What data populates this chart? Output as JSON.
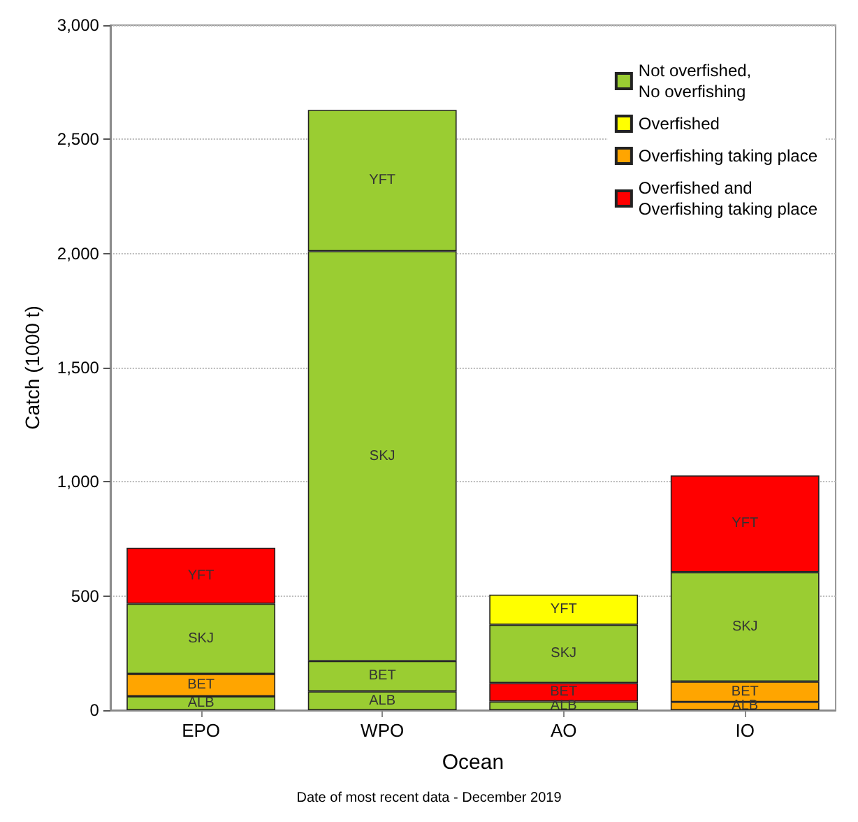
{
  "chart_data": {
    "type": "bar",
    "stacked": true,
    "xlabel": "Ocean",
    "ylabel": "Catch (1000 t)",
    "annotations": [
      "Date of most recent data - December 2019"
    ],
    "categories": [
      "EPO",
      "WPO",
      "AO",
      "IO"
    ],
    "series": [
      {
        "name": "ALB",
        "values": [
          61,
          82,
          38,
          36
        ],
        "colors": [
          "#9acd32",
          "#9acd32",
          "#9acd32",
          "#ffa500"
        ]
      },
      {
        "name": "BET",
        "values": [
          98,
          133,
          81,
          89
        ],
        "colors": [
          "#ffa500",
          "#9acd32",
          "#ff0000",
          "#ffa500"
        ]
      },
      {
        "name": "SKJ",
        "values": [
          307,
          1795,
          255,
          479
        ],
        "colors": [
          "#9acd32",
          "#9acd32",
          "#9acd32",
          "#9acd32"
        ]
      },
      {
        "name": "YFT",
        "values": [
          245,
          619,
          132,
          424
        ],
        "colors": [
          "#ff0000",
          "#9acd32",
          "#ffff00",
          "#ff0000"
        ]
      },
      {
        "name": "Not overfished,\nNo overfishing",
        "color": "#9acd32",
        "values": [
          null,
          null,
          null,
          null
        ]
      },
      {
        "name": "Overfished",
        "color": "#ffff00",
        "values": [
          null,
          null,
          null,
          null
        ]
      },
      {
        "name": "Overfishing taking place",
        "color": "#ffa500",
        "values": [
          null,
          null,
          null,
          null
        ]
      },
      {
        "name": "Overfished and\nOverfishing taking place",
        "color": "#ff0000",
        "values": [
          null,
          null,
          null,
          null
        ]
      }
    ],
    "ylim": [
      0,
      3000
    ],
    "yticks": [
      {
        "value": 0,
        "label": "0"
      },
      {
        "value": 500,
        "label": "500"
      },
      {
        "value": 1000,
        "label": "1,000"
      },
      {
        "value": 1500,
        "label": "1,500"
      },
      {
        "value": 2000,
        "label": "2,000"
      },
      {
        "value": 2500,
        "label": "2,500"
      },
      {
        "value": 3000,
        "label": "3,000"
      }
    ],
    "grid": "y",
    "legend": "top right"
  }
}
